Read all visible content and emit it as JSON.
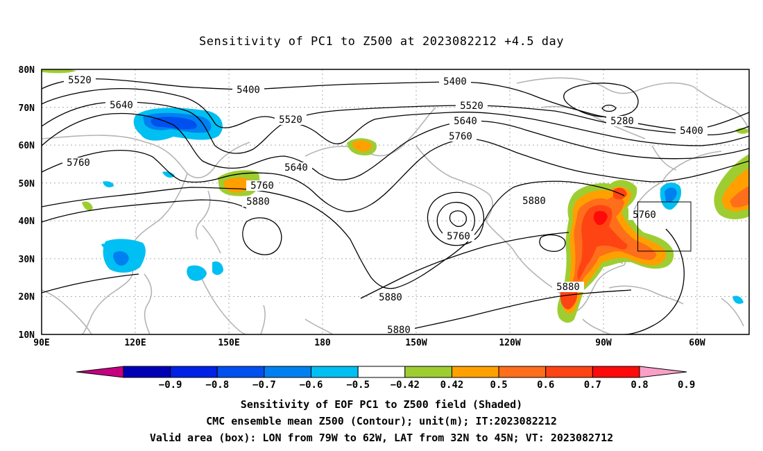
{
  "title": "Sensitivity of PC1 to Z500 at 2023082212 +4.5 day",
  "axes": {
    "lat_labels": [
      "80N",
      "70N",
      "60N",
      "50N",
      "40N",
      "30N",
      "20N",
      "10N"
    ],
    "lon_labels": [
      "90E",
      "120E",
      "150E",
      "180",
      "150W",
      "120W",
      "90W",
      "60W"
    ]
  },
  "contour_labels": [
    "5520",
    "5400",
    "5640",
    "5520",
    "5400",
    "5520",
    "5640",
    "5280",
    "5400",
    "5760",
    "5760",
    "5640",
    "5760",
    "5880",
    "5880",
    "5760",
    "5760",
    "5880",
    "5880",
    "5880"
  ],
  "colorbar": {
    "labels": [
      "-0.9",
      "-0.8",
      "-0.7",
      "-0.6",
      "-0.5",
      "-0.42",
      "0.42",
      "0.5",
      "0.6",
      "0.7",
      "0.8",
      "0.9"
    ],
    "colors": [
      "#c4007f",
      "#0000b4",
      "#0020e6",
      "#0050f0",
      "#0080f0",
      "#00bff2",
      "#ffffff",
      "#9ecd32",
      "#ffa000",
      "#ff6e1a",
      "#ff4413",
      "#ff0a0a",
      "#f9a0c8"
    ]
  },
  "valid_box": {
    "lon_min": -79,
    "lon_max": -62,
    "lat_min": 32,
    "lat_max": 45
  },
  "captions": {
    "line1": "Sensitivity of EOF PC1 to Z500 field (Shaded)",
    "line2": "CMC ensemble mean Z500 (Contour); unit(m); IT:2023082212",
    "line3": "Valid area (box): LON from 79W to 62W, LAT from 32N to 45N; VT: 2023082712"
  }
}
